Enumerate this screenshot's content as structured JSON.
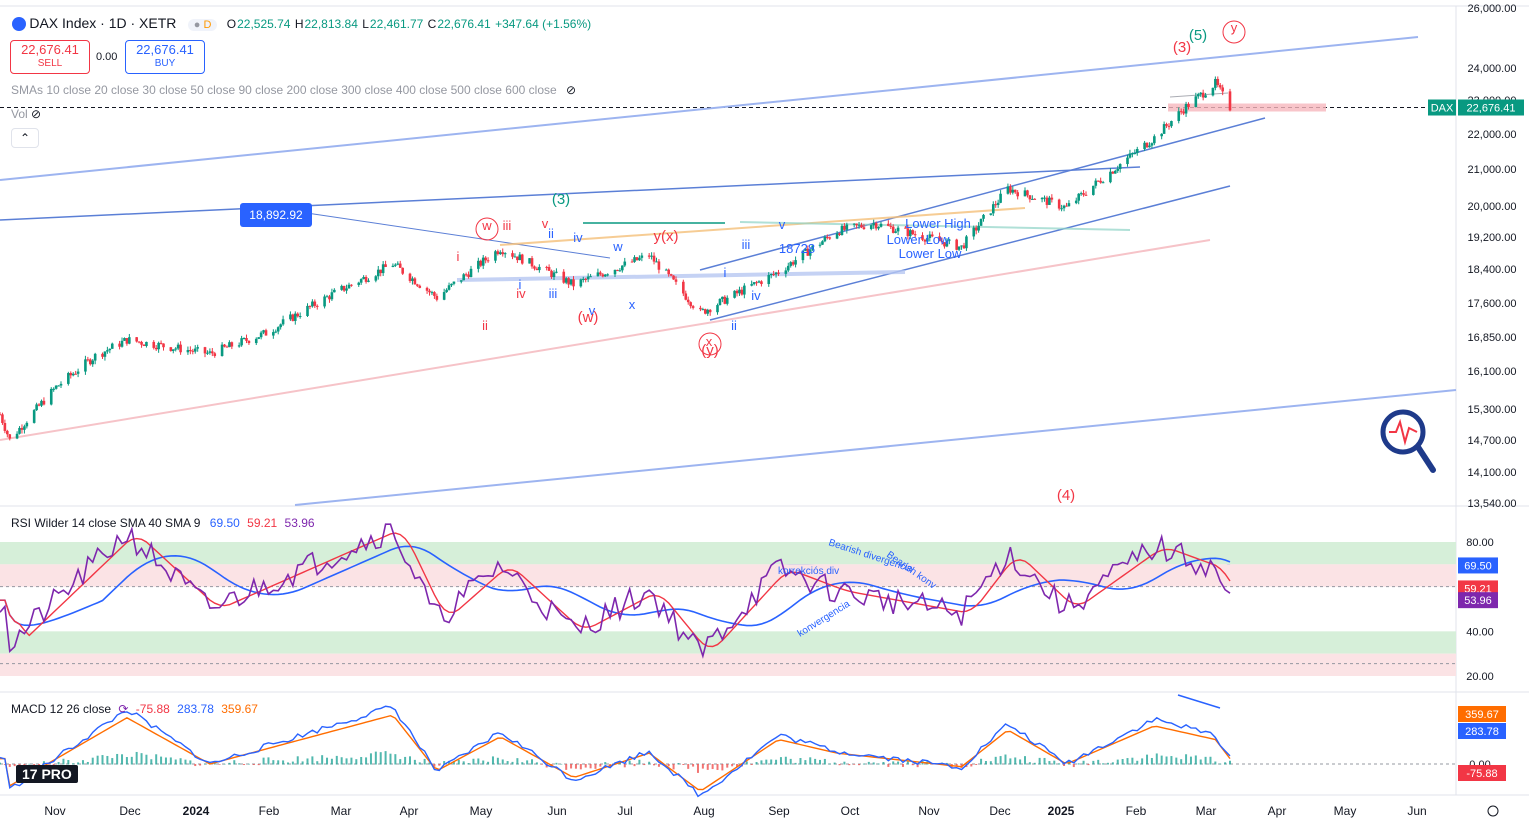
{
  "header": {
    "symbol_title": "DAX Index · 1D · XETR",
    "ohlc": [
      {
        "k": "O",
        "v": "22,525.74"
      },
      {
        "k": "H",
        "v": "22,813.84"
      },
      {
        "k": "L",
        "v": "22,461.77"
      },
      {
        "k": "C",
        "v": "22,676.41"
      }
    ],
    "change": "+347.64 (+1.56%)",
    "delayed_badge": "D",
    "sell_price": "22,676.41",
    "sell_label": "SELL",
    "spread": "0.00",
    "buy_price": "22,676.41",
    "buy_label": "BUY",
    "sma_legend": "SMAs 10 close 20 close 30 close 50 close 90 close 200 close 300 close 400 close 500 close 600 close",
    "vol_label": "Vol"
  },
  "colors": {
    "up": "#089981",
    "down": "#f23645",
    "rsi": "#7e27ad",
    "blue": "#2962ff",
    "orange": "#ff6d00"
  },
  "time_axis": [
    "Nov",
    "Dec",
    "2024",
    "Feb",
    "Mar",
    "Apr",
    "May",
    "Jun",
    "Jul",
    "Aug",
    "Sep",
    "Oct",
    "Nov",
    "Dec",
    "2025",
    "Feb",
    "Mar",
    "Apr",
    "May",
    "Jun"
  ],
  "price_axis": [
    "26,000.00",
    "24,000.00",
    "23,000.00",
    "22,000.00",
    "21,000.00",
    "20,000.00",
    "19,200.00",
    "18,400.00",
    "17,600.00",
    "16,850.00",
    "16,100.00",
    "15,300.00",
    "14,700.00",
    "14,100.00",
    "13,540.00"
  ],
  "price_tags": {
    "symbol": "DAX",
    "last": "22,676.41",
    "level_label": "18,892.92"
  },
  "rsi": {
    "legend": "RSI Wilder 14 close SMA 40 SMA 9",
    "values": [
      "69.50",
      "59.21",
      "53.96"
    ],
    "axis": [
      "80.00",
      "40.00",
      "20.00"
    ],
    "annotations": [
      "Bearish divergencia",
      "Bearish konv",
      "korrekciós div",
      "konvergencia"
    ]
  },
  "macd": {
    "legend": "MACD 12 26 close",
    "values": [
      "-75.88",
      "283.78",
      "359.67"
    ],
    "axis": [
      "0.00"
    ]
  },
  "wave_labels": [
    {
      "t": "(5)",
      "c": "#089981"
    },
    {
      "t": "y",
      "c": "#f23645"
    },
    {
      "t": "(3)",
      "c": "#f23645"
    },
    {
      "t": "(3)",
      "c": "#089981"
    },
    {
      "t": "w",
      "c": "#f23645"
    },
    {
      "t": "iii",
      "c": "#f23645"
    },
    {
      "t": "v",
      "c": "#f23645"
    },
    {
      "t": "ii",
      "c": "#2962ff"
    },
    {
      "t": "iv",
      "c": "#2962ff"
    },
    {
      "t": "w",
      "c": "#2962ff"
    },
    {
      "t": "y(x)",
      "c": "#f23645"
    },
    {
      "t": "iii",
      "c": "#2962ff"
    },
    {
      "t": "v",
      "c": "#2962ff"
    },
    {
      "t": "i",
      "c": "#f23645"
    },
    {
      "t": "i",
      "c": "#2962ff"
    },
    {
      "t": "iv",
      "c": "#f23645"
    },
    {
      "t": "iii",
      "c": "#2962ff"
    },
    {
      "t": "v",
      "c": "#2962ff"
    },
    {
      "t": "(w)",
      "c": "#f23645"
    },
    {
      "t": "x",
      "c": "#2962ff"
    },
    {
      "t": "ii",
      "c": "#f23645"
    },
    {
      "t": "i",
      "c": "#2962ff"
    },
    {
      "t": "iv",
      "c": "#2962ff"
    },
    {
      "t": "ii",
      "c": "#2962ff"
    },
    {
      "t": "x",
      "c": "#f23645"
    },
    {
      "t": "(y)",
      "c": "#f23645"
    },
    {
      "t": "18728",
      "c": "#2962ff"
    },
    {
      "t": "Lower High",
      "c": "#2962ff"
    },
    {
      "t": "Lower Low",
      "c": "#2962ff"
    },
    {
      "t": "Lower Low",
      "c": "#2962ff"
    },
    {
      "t": "(4)",
      "c": "#f23645"
    }
  ],
  "chart_data": {
    "type": "candlestick",
    "title": "DAX Index · 1D · XETR",
    "x_range": [
      "2023-10-23",
      "2025-03-10"
    ],
    "ylim": [
      13540,
      26000
    ],
    "y_scale": "log",
    "grid": false,
    "price_anchors": [
      {
        "date": "2023-10-23",
        "close": 15200
      },
      {
        "date": "2023-10-27",
        "close": 14700
      },
      {
        "date": "2023-11-15",
        "close": 15750
      },
      {
        "date": "2023-12-01",
        "close": 16400
      },
      {
        "date": "2023-12-14",
        "close": 16750
      },
      {
        "date": "2024-01-17",
        "close": 16450
      },
      {
        "date": "2024-02-09",
        "close": 16900
      },
      {
        "date": "2024-03-08",
        "close": 17800
      },
      {
        "date": "2024-04-01",
        "close": 18490
      },
      {
        "date": "2024-04-19",
        "close": 17700
      },
      {
        "date": "2024-05-15",
        "close": 18870
      },
      {
        "date": "2024-06-14",
        "close": 18000
      },
      {
        "date": "2024-07-15",
        "close": 18700
      },
      {
        "date": "2024-08-05",
        "close": 17350
      },
      {
        "date": "2024-09-06",
        "close": 18300
      },
      {
        "date": "2024-09-30",
        "close": 19300
      },
      {
        "date": "2024-10-15",
        "close": 19500
      },
      {
        "date": "2024-11-20",
        "close": 18900
      },
      {
        "date": "2024-12-09",
        "close": 20400
      },
      {
        "date": "2025-01-02",
        "close": 19900
      },
      {
        "date": "2025-02-07",
        "close": 21800
      },
      {
        "date": "2025-02-20",
        "close": 22700
      },
      {
        "date": "2025-03-04",
        "close": 23400
      },
      {
        "date": "2025-03-10",
        "close": 22676.41
      }
    ],
    "last_close": 22676.41,
    "rsi_anchors": [
      {
        "date": "2023-10-27",
        "v": 34
      },
      {
        "date": "2023-12-14",
        "v": 84
      },
      {
        "date": "2024-01-17",
        "v": 50
      },
      {
        "date": "2024-04-01",
        "v": 86
      },
      {
        "date": "2024-04-19",
        "v": 45
      },
      {
        "date": "2024-05-15",
        "v": 70
      },
      {
        "date": "2024-06-14",
        "v": 40
      },
      {
        "date": "2024-07-15",
        "v": 58
      },
      {
        "date": "2024-08-05",
        "v": 30
      },
      {
        "date": "2024-09-06",
        "v": 68
      },
      {
        "date": "2024-09-30",
        "v": 58
      },
      {
        "date": "2024-11-20",
        "v": 48
      },
      {
        "date": "2024-12-09",
        "v": 75
      },
      {
        "date": "2025-01-02",
        "v": 50
      },
      {
        "date": "2025-02-07",
        "v": 78
      },
      {
        "date": "2025-03-04",
        "v": 68
      },
      {
        "date": "2025-03-10",
        "v": 53.96
      }
    ],
    "rsi_levels": [
      80,
      70,
      60,
      40,
      30,
      20
    ],
    "macd_last": {
      "hist": -75.88,
      "macd": 283.78,
      "signal": 359.67
    }
  }
}
